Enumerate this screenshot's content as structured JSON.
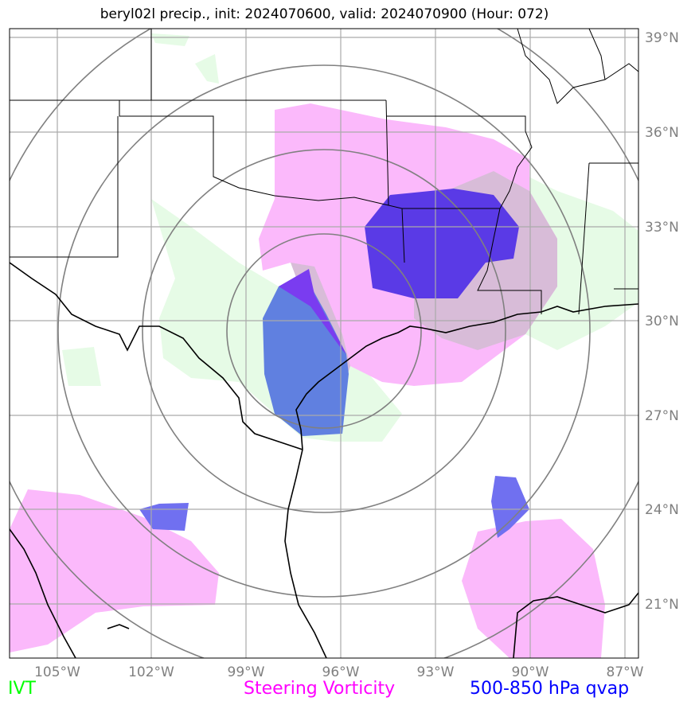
{
  "title": "beryl02l precip., init: 2024070600, valid: 2024070900 (Hour: 072)",
  "lon_ticks": [
    "105°W",
    "102°W",
    "99°W",
    "96°W",
    "93°W",
    "90°W",
    "87°W"
  ],
  "lat_ticks": [
    "39°N",
    "36°N",
    "33°N",
    "30°N",
    "27°N",
    "24°N",
    "21°N"
  ],
  "legend": {
    "ivt": {
      "label": "IVT",
      "color": "#00ff00"
    },
    "sv": {
      "label": "Steering Vorticity",
      "color": "#ff00ff"
    },
    "qvap": {
      "label": "500-850 hPa qvap",
      "color": "#0000ff"
    }
  },
  "colors": {
    "ivt_fill": "#e6fbe6",
    "sv_fill": "#fbb9fb",
    "qvap_fill": "#5a3ae6",
    "grid": "#aaaaaa",
    "rings": "#808080",
    "coast": "#000000"
  }
}
